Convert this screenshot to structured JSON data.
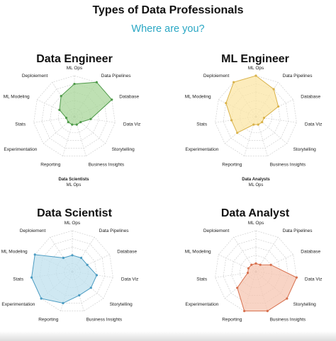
{
  "title": "Types of Data Professionals",
  "subtitle": "Where are you?",
  "colors": {
    "subtitle": "#2aa7c4",
    "data_engineer": {
      "fill": "#a8d59a",
      "stroke": "#4f9a4a"
    },
    "ml_engineer": {
      "fill": "#fbe6a6",
      "stroke": "#d9b24a"
    },
    "data_scientist": {
      "fill": "#bfe0ee",
      "stroke": "#4a9bc2"
    },
    "data_analyst": {
      "fill": "#f6c5b2",
      "stroke": "#d7704e"
    }
  },
  "notes": [
    {
      "bold": "Data Scientists",
      "text": "ML Ops"
    },
    {
      "bold": "Data Analysts",
      "text": "ML Ops"
    }
  ],
  "chart_data": [
    {
      "type": "radar",
      "title": "Data Engineer",
      "axes": [
        "ML Ops",
        "Data Pipelines",
        "Database",
        "Data Viz",
        "Storytelling",
        "Business Insights",
        "Reporting",
        "Experimentation",
        "Stats",
        "ML Modeling",
        "Deploiement"
      ],
      "rlim": [
        0,
        5
      ],
      "grid": true,
      "series": [
        {
          "values": [
            4,
            5,
            5,
            2,
            1,
            1,
            1,
            1,
            1,
            2,
            3
          ]
        }
      ]
    },
    {
      "type": "radar",
      "title": "ML Engineer",
      "axes": [
        "ML Ops",
        "Data Pipelines",
        "Database",
        "Data Viz",
        "Storytelling",
        "Business Insights",
        "Reporting",
        "Experimentation",
        "Stats",
        "ML Modeling",
        "Deploiement"
      ],
      "rlim": [
        0,
        5
      ],
      "grid": true,
      "series": [
        {
          "values": [
            5,
            4,
            3,
            1,
            1,
            1,
            1,
            3,
            3,
            4,
            5
          ]
        }
      ]
    },
    {
      "type": "radar",
      "title": "Data Scientist",
      "axes": [
        "ML Ops",
        "Data Pipelines",
        "Database",
        "Data Viz",
        "Storytelling",
        "Business Insights",
        "Reporting",
        "Experimentation",
        "Stats",
        "ML Modeling",
        "Deploiement"
      ],
      "rlim": [
        0,
        5
      ],
      "grid": true,
      "series": [
        {
          "values": [
            2,
            2,
            2,
            3,
            3,
            3,
            4,
            5,
            5,
            5,
            2
          ]
        }
      ]
    },
    {
      "type": "radar",
      "title": "Data Analyst",
      "axes": [
        "ML Ops",
        "Data Pipelines",
        "Database",
        "Data Viz",
        "Storytelling",
        "Business Insights",
        "Reporting",
        "Experimentation",
        "Stats",
        "ML Modeling",
        "Deploiement"
      ],
      "rlim": [
        0,
        5
      ],
      "grid": true,
      "series": [
        {
          "values": [
            1,
            1,
            2,
            5,
            5,
            5,
            5,
            3,
            1,
            1,
            1
          ]
        }
      ]
    }
  ]
}
